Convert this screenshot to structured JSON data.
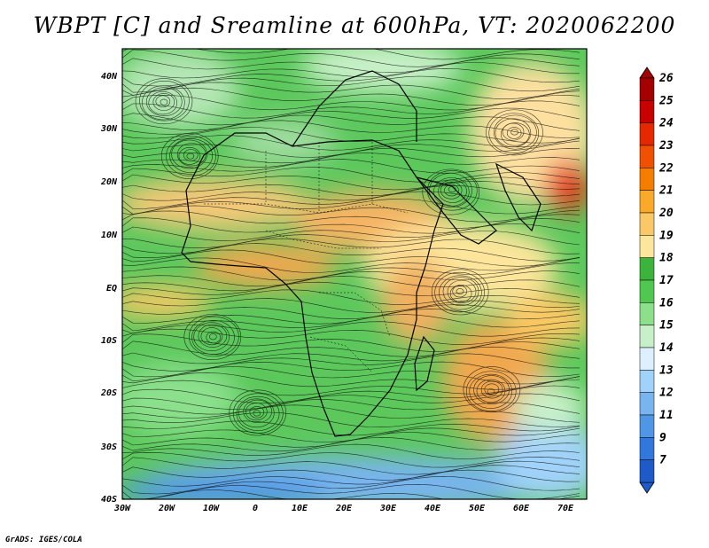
{
  "title": "WBPT [C] and Sreamline at 600hPa, VT: 2020062200",
  "credit": "GrADS: IGES/COLA",
  "map": {
    "lat_labels": [
      "40N",
      "30N",
      "20N",
      "10N",
      "EQ",
      "10S",
      "20S",
      "30S",
      "40S"
    ],
    "lon_labels": [
      "30W",
      "20W",
      "10W",
      "0",
      "10E",
      "20E",
      "30E",
      "40E",
      "50E",
      "60E",
      "70E"
    ]
  },
  "colorbar": {
    "labels": [
      "26",
      "25",
      "24",
      "23",
      "22",
      "21",
      "20",
      "19",
      "18",
      "17",
      "16",
      "15",
      "14",
      "13",
      "12",
      "11",
      "9",
      "7"
    ],
    "colors": [
      "#a50000",
      "#c80000",
      "#e62800",
      "#f05000",
      "#f57d00",
      "#faaa28",
      "#fac864",
      "#fde69b",
      "#3cb43c",
      "#50c850",
      "#8ce08c",
      "#c8f0c8",
      "#dcf0ff",
      "#a0d2fa",
      "#78b4f0",
      "#5096e6",
      "#3278dc",
      "#1e5ac8"
    ]
  },
  "colors": {
    "land_outline": "#000000",
    "streamline": "#000000"
  }
}
